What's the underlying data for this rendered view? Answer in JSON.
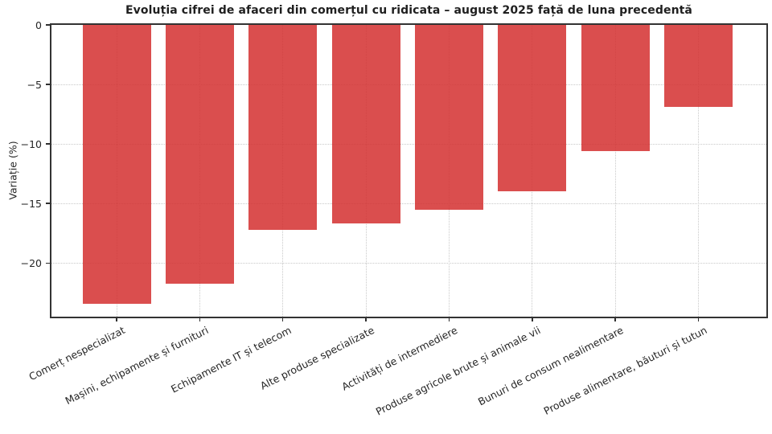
{
  "chart_data": {
    "type": "bar",
    "title": "Evoluția cifrei de afaceri din comerțul cu ridicata – august 2025 față de luna precedentă",
    "ylabel": "Variație (%)",
    "xlabel": "",
    "categories": [
      "Comerț nespecializat",
      "Mașini, echipamente și furnituri",
      "Echipamente IT și telecom",
      "Alte produse specializate",
      "Activități de intermediere",
      "Produse agricole brute și animale vii",
      "Bunuri de consum nealimentare",
      "Produse alimentare, băuturi și tutun"
    ],
    "values": [
      -23.4,
      -21.7,
      -17.2,
      -16.7,
      -15.5,
      -14.0,
      -10.6,
      -6.9
    ],
    "ylim": [
      -24.5,
      0
    ],
    "yticks": [
      0,
      -5,
      -10,
      -15,
      -20
    ],
    "bar_color": "rgba(211,47,47,0.85)",
    "grid": "dotted, both axes",
    "grid_color": "#c9c9c9",
    "axis_color": "#333333",
    "legend": "none"
  }
}
